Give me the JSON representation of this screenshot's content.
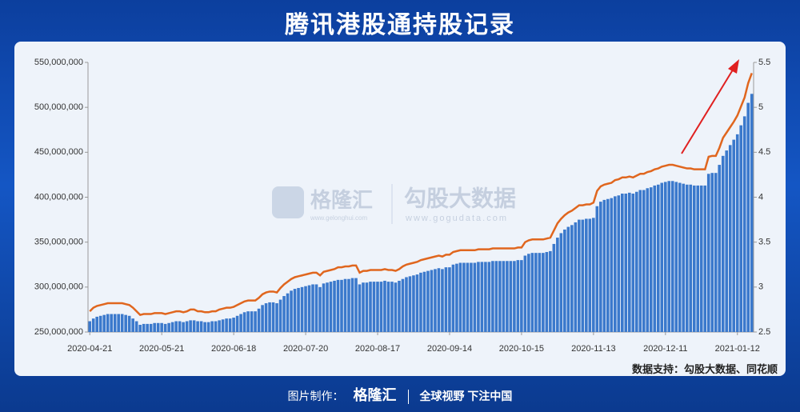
{
  "title": "腾讯港股通持股记录",
  "watermark": {
    "brand": "格隆汇",
    "brand_url": "www.gelonghui.com",
    "partner": "勾股大数据",
    "partner_url": "www.gogudata.com"
  },
  "source": "数据支持：勾股大数据、同花顺",
  "footer": {
    "made_by": "图片制作：",
    "brand": "格隆汇",
    "slogan": "全球视野 下注中国"
  },
  "chart_data": {
    "type": "bar",
    "categories": [
      "2020-04-21",
      null,
      null,
      null,
      null,
      null,
      null,
      null,
      null,
      null,
      null,
      null,
      null,
      null,
      null,
      null,
      null,
      null,
      null,
      null,
      "2020-05-21",
      null,
      null,
      null,
      null,
      null,
      null,
      null,
      null,
      null,
      null,
      null,
      null,
      null,
      null,
      null,
      null,
      null,
      null,
      null,
      "2020-06-18",
      null,
      null,
      null,
      null,
      null,
      null,
      null,
      null,
      null,
      null,
      null,
      null,
      null,
      null,
      null,
      null,
      null,
      null,
      null,
      "2020-07-20",
      null,
      null,
      null,
      null,
      null,
      null,
      null,
      null,
      null,
      null,
      null,
      null,
      null,
      null,
      null,
      null,
      null,
      null,
      null,
      "2020-08-17",
      null,
      null,
      null,
      null,
      null,
      null,
      null,
      null,
      null,
      null,
      null,
      null,
      null,
      null,
      null,
      null,
      null,
      null,
      null,
      "2020-09-14",
      null,
      null,
      null,
      null,
      null,
      null,
      null,
      null,
      null,
      null,
      null,
      null,
      null,
      null,
      null,
      null,
      null,
      null,
      null,
      "2020-10-15",
      null,
      null,
      null,
      null,
      null,
      null,
      null,
      null,
      null,
      null,
      null,
      null,
      null,
      null,
      null,
      null,
      null,
      null,
      null,
      "2020-11-13",
      null,
      null,
      null,
      null,
      null,
      null,
      null,
      null,
      null,
      null,
      null,
      null,
      null,
      null,
      null,
      null,
      null,
      null,
      null,
      "2020-12-11",
      null,
      null,
      null,
      null,
      null,
      null,
      null,
      null,
      null,
      null,
      null,
      null,
      null,
      null,
      null,
      null,
      null,
      null,
      null,
      "2021-01-12",
      null,
      null,
      null,
      null
    ],
    "series": [
      {
        "color": "#3b79cc",
        "values": [
          262000000.0,
          265000000.0,
          267000000.0,
          268000000.0,
          269000000.0,
          270000000.0,
          270000000.0,
          270000000.0,
          270000000.0,
          270000000.0,
          269000000.0,
          268000000.0,
          265000000.0,
          262000000.0,
          258000000.0,
          259000000.0,
          259000000.0,
          259000000.0,
          260000000.0,
          260000000.0,
          260000000.0,
          259000000.0,
          260000000.0,
          261000000.0,
          262000000.0,
          262000000.0,
          261000000.0,
          262000000.0,
          263000000.0,
          263000000.0,
          262000000.0,
          262000000.0,
          261000000.0,
          261000000.0,
          262000000.0,
          262000000.0,
          263000000.0,
          264000000.0,
          265000000.0,
          265000000.0,
          266000000.0,
          268000000.0,
          270000000.0,
          272000000.0,
          273000000.0,
          273000000.0,
          273000000.0,
          276000000.0,
          280000000.0,
          282000000.0,
          283000000.0,
          283000000.0,
          282000000.0,
          286000000.0,
          290000000.0,
          293000000.0,
          296000000.0,
          298000000.0,
          299000000.0,
          300000000.0,
          301000000.0,
          302000000.0,
          303000000.0,
          303000000.0,
          300000000.0,
          304000000.0,
          305000000.0,
          306000000.0,
          307000000.0,
          308000000.0,
          308000000.0,
          309000000.0,
          309000000.0,
          310000000.0,
          310000000.0,
          303000000.0,
          305000000.0,
          305000000.0,
          306000000.0,
          306000000.0,
          306000000.0,
          306000000.0,
          307000000.0,
          306000000.0,
          306000000.0,
          305000000.0,
          307000000.0,
          309000000.0,
          311000000.0,
          312000000.0,
          313000000.0,
          314000000.0,
          316000000.0,
          317000000.0,
          318000000.0,
          319000000.0,
          320000000.0,
          321000000.0,
          320000000.0,
          322000000.0,
          322000000.0,
          325000000.0,
          326000000.0,
          327000000.0,
          327000000.0,
          327000000.0,
          327000000.0,
          327000000.0,
          328000000.0,
          328000000.0,
          328000000.0,
          328000000.0,
          329000000.0,
          329000000.0,
          329000000.0,
          329000000.0,
          329000000.0,
          329000000.0,
          329000000.0,
          330000000.0,
          330000000.0,
          335000000.0,
          337000000.0,
          338000000.0,
          338000000.0,
          338000000.0,
          338000000.0,
          339000000.0,
          340000000.0,
          348000000.0,
          355000000.0,
          360000000.0,
          364000000.0,
          367000000.0,
          369000000.0,
          372000000.0,
          375000000.0,
          375000000.0,
          376000000.0,
          376000000.0,
          377000000.0,
          390000000.0,
          395000000.0,
          397000000.0,
          398000000.0,
          399000000.0,
          401000000.0,
          402000000.0,
          404000000.0,
          404000000.0,
          405000000.0,
          404000000.0,
          406000000.0,
          408000000.0,
          408000000.0,
          410000000.0,
          411000000.0,
          413000000.0,
          414000000.0,
          416000000.0,
          417000000.0,
          418000000.0,
          418000000.0,
          417000000.0,
          416000000.0,
          415000000.0,
          414000000.0,
          414000000.0,
          413000000.0,
          413000000.0,
          413000000.0,
          413000000.0,
          426000000.0,
          427000000.0,
          427000000.0,
          436000000.0,
          446000000.0,
          452000000.0,
          458000000.0,
          464000000.0,
          470000000.0,
          480000000.0,
          490000000.0,
          505000000.0,
          515000000.0
        ]
      },
      {
        "type": "line",
        "axis": "y2",
        "color": "#e0661e",
        "values": [
          2.73,
          2.77,
          2.79,
          2.8,
          2.81,
          2.82,
          2.82,
          2.82,
          2.82,
          2.82,
          2.81,
          2.8,
          2.77,
          2.73,
          2.69,
          2.7,
          2.7,
          2.7,
          2.71,
          2.71,
          2.71,
          2.7,
          2.71,
          2.72,
          2.73,
          2.73,
          2.72,
          2.73,
          2.75,
          2.75,
          2.73,
          2.73,
          2.72,
          2.72,
          2.73,
          2.73,
          2.75,
          2.76,
          2.77,
          2.77,
          2.78,
          2.8,
          2.82,
          2.84,
          2.85,
          2.85,
          2.85,
          2.88,
          2.92,
          2.94,
          2.95,
          2.95,
          2.94,
          2.99,
          3.03,
          3.06,
          3.09,
          3.11,
          3.12,
          3.13,
          3.14,
          3.15,
          3.16,
          3.16,
          3.13,
          3.17,
          3.18,
          3.19,
          3.2,
          3.22,
          3.22,
          3.23,
          3.23,
          3.24,
          3.24,
          3.16,
          3.18,
          3.18,
          3.19,
          3.19,
          3.19,
          3.19,
          3.2,
          3.19,
          3.19,
          3.18,
          3.2,
          3.23,
          3.25,
          3.26,
          3.27,
          3.28,
          3.3,
          3.31,
          3.32,
          3.33,
          3.34,
          3.35,
          3.34,
          3.36,
          3.36,
          3.39,
          3.4,
          3.41,
          3.41,
          3.41,
          3.41,
          3.41,
          3.42,
          3.42,
          3.42,
          3.42,
          3.43,
          3.43,
          3.43,
          3.43,
          3.43,
          3.43,
          3.43,
          3.44,
          3.44,
          3.5,
          3.52,
          3.53,
          3.53,
          3.53,
          3.53,
          3.54,
          3.55,
          3.63,
          3.71,
          3.76,
          3.8,
          3.83,
          3.85,
          3.88,
          3.91,
          3.91,
          3.92,
          3.92,
          3.94,
          4.07,
          4.12,
          4.14,
          4.15,
          4.16,
          4.19,
          4.2,
          4.22,
          4.22,
          4.23,
          4.22,
          4.24,
          4.26,
          4.26,
          4.28,
          4.29,
          4.31,
          4.32,
          4.34,
          4.35,
          4.36,
          4.36,
          4.35,
          4.34,
          4.33,
          4.32,
          4.32,
          4.31,
          4.31,
          4.31,
          4.31,
          4.45,
          4.46,
          4.46,
          4.55,
          4.66,
          4.72,
          4.78,
          4.84,
          4.91,
          5.01,
          5.11,
          5.27,
          5.38
        ]
      }
    ],
    "ylim": [
      250000000,
      550000000
    ],
    "yticks": [
      {
        "value": 250000000,
        "label": "250,000,000"
      },
      {
        "value": 300000000,
        "label": "300,000,000"
      },
      {
        "value": 350000000,
        "label": "350,000,000"
      },
      {
        "value": 400000000,
        "label": "400,000,000"
      },
      {
        "value": 450000000,
        "label": "450,000,000"
      },
      {
        "value": 500000000,
        "label": "500,000,000"
      },
      {
        "value": 550000000,
        "label": "550,000,000"
      }
    ],
    "y2lim": [
      2.5,
      5.5
    ],
    "y2ticks": [
      2.5,
      3,
      3.5,
      4,
      4.5,
      5,
      5.5
    ]
  }
}
